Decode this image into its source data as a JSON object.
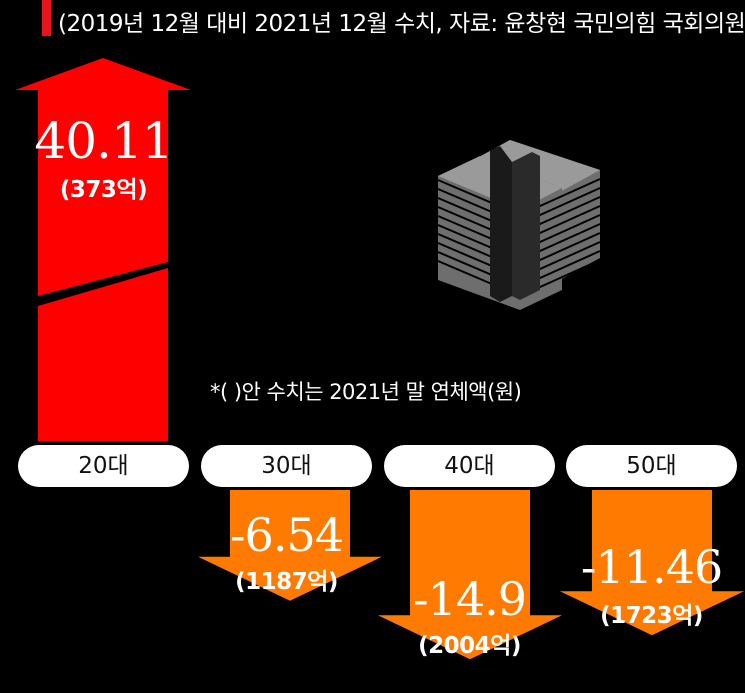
{
  "header": {
    "subtitle": "(2019년 12월 대비 2021년 12월 수치, 자료: 윤창현 국민의힘 국회의원)"
  },
  "note": "*(     )안 수치는 2021년 말 연체액(원)",
  "colors": {
    "up": "#ff0000",
    "down": "#ff7a00",
    "accent": "#e8141b",
    "background": "#000000"
  },
  "icon": "money-stack-icon",
  "chart_data": {
    "type": "bar",
    "title": "",
    "categories": [
      "20대",
      "30대",
      "40대",
      "50대"
    ],
    "series": [
      {
        "values": [
          40.11,
          -6.54,
          -14.9,
          -11.46
        ]
      }
    ],
    "value_labels": [
      "40.11",
      "-6.54",
      "-14.9",
      "-11.46"
    ],
    "amount_labels": [
      "(373억)",
      "(1187억)",
      "(2004억)",
      "(1723억)"
    ],
    "xlabel": "",
    "ylabel": ""
  }
}
